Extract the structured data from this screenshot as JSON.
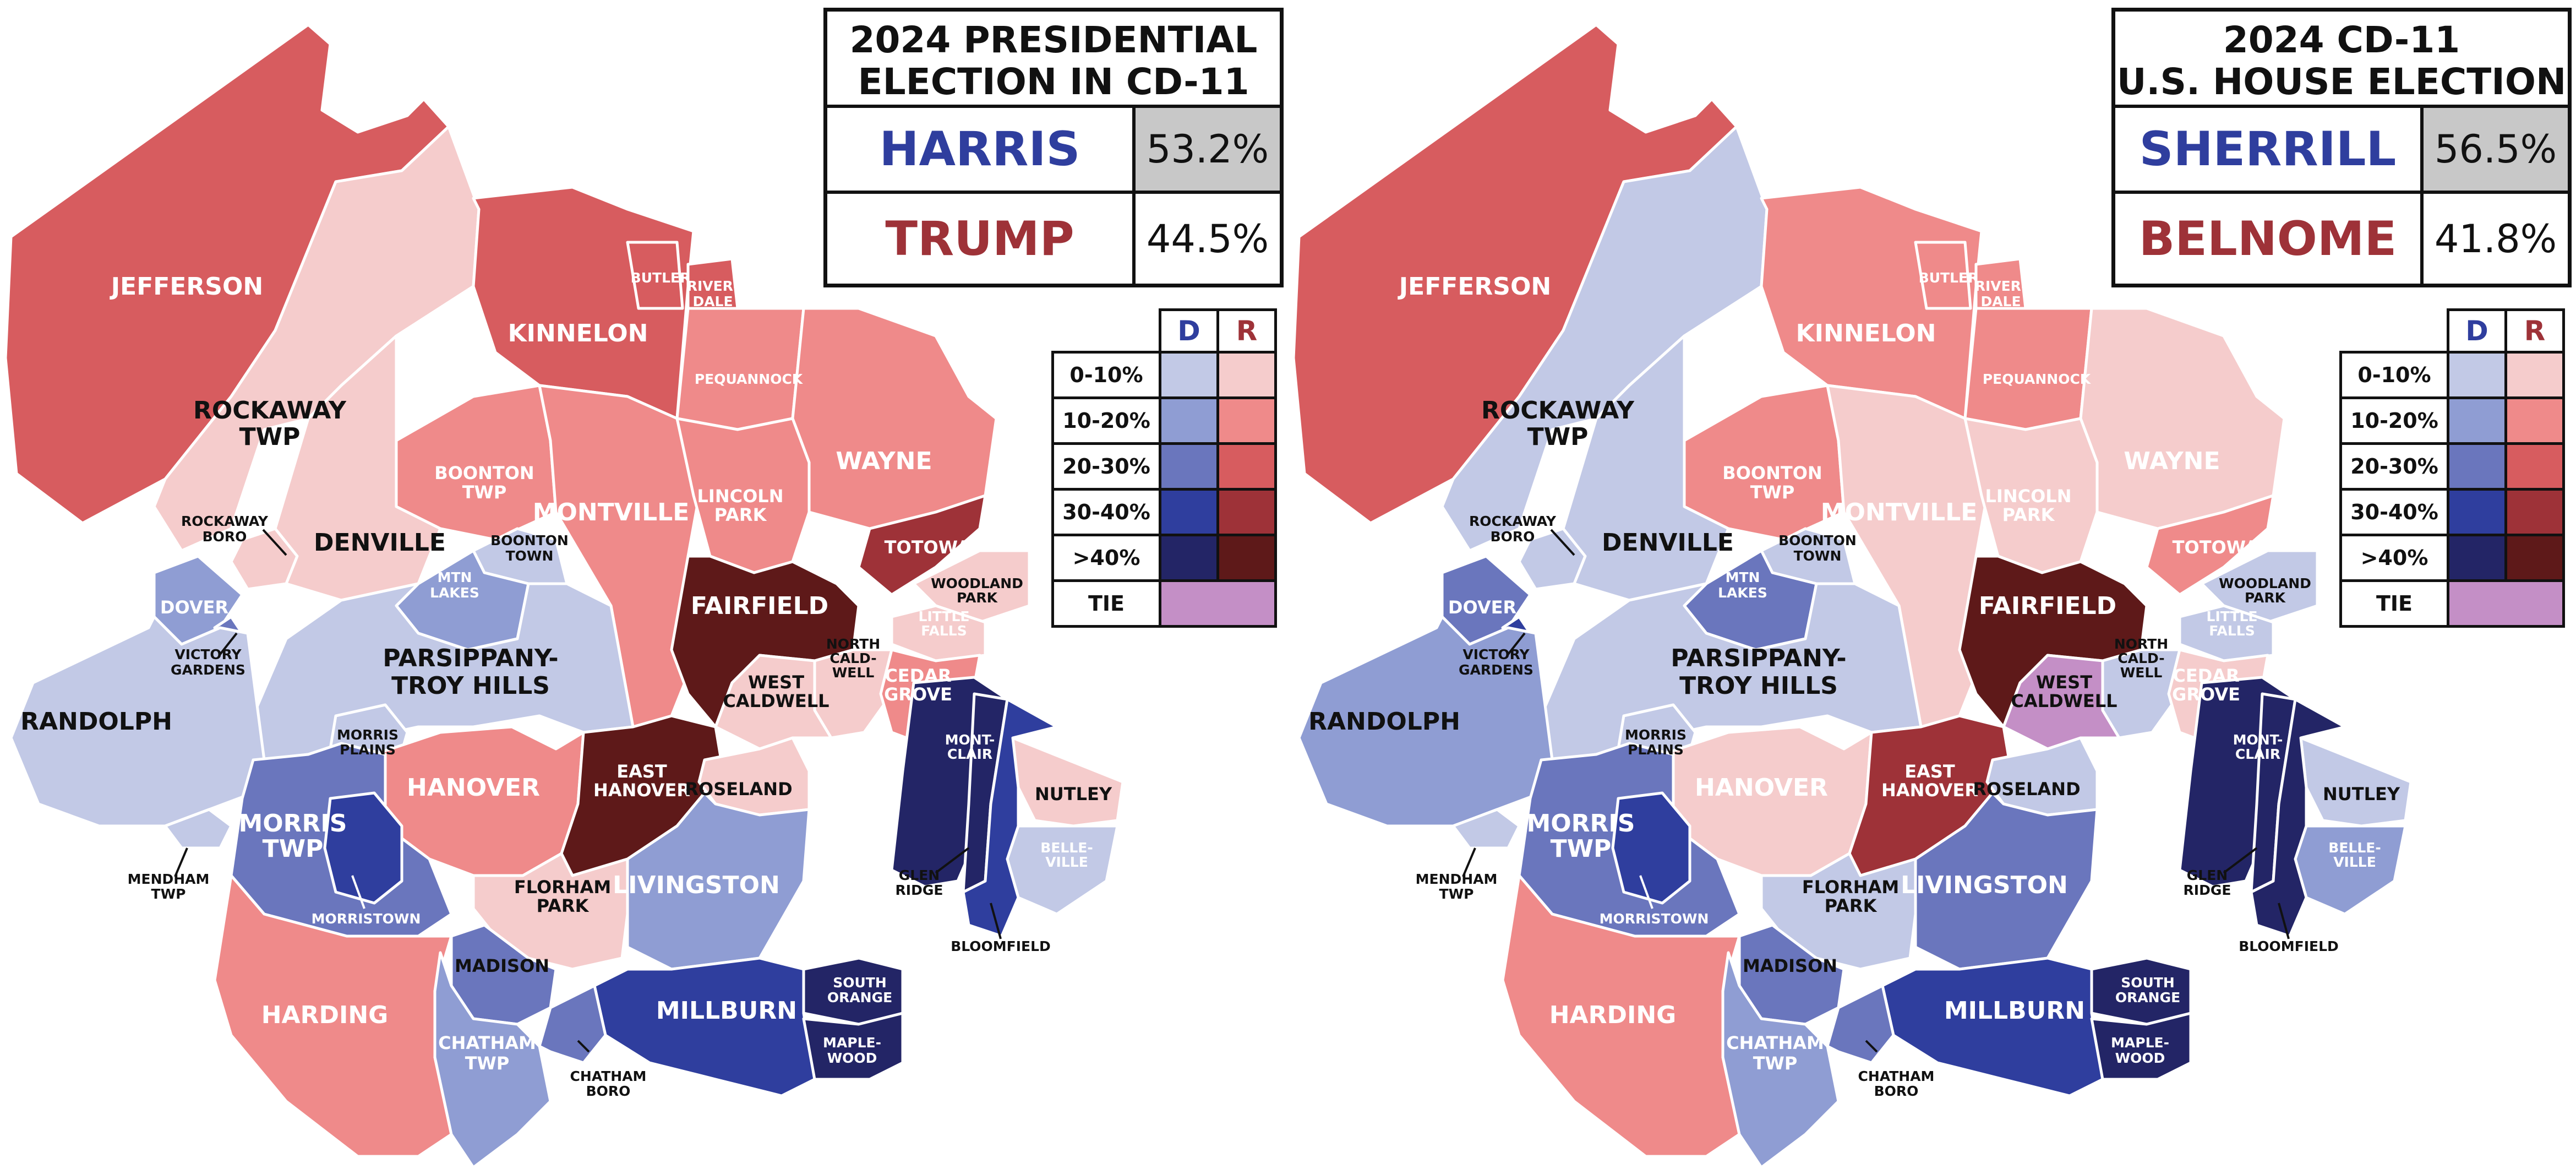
{
  "colors": {
    "d_0_10": "#c2c9e6",
    "d_10_20": "#8f9dd3",
    "d_20_30": "#6a76bd",
    "d_30_40": "#2f3e9e",
    "d_40_plus": "#232566",
    "r_0_10": "#f5cccc",
    "r_10_20": "#ef8a8a",
    "r_20_30": "#d75c5f",
    "r_30_40": "#9e3238",
    "r_40_plus": "#5e1919",
    "tie": "#c48fc6",
    "dem_text": "#2f3e9e",
    "rep_text": "#9e3238",
    "pct_highlight": "#c8c8c8"
  },
  "legend": {
    "d_header": "D",
    "r_header": "R",
    "rows": [
      "0-10%",
      "10-20%",
      "20-30%",
      "30-40%",
      ">40%"
    ],
    "tie_label": "TIE"
  },
  "maps": [
    {
      "title_line1": "2024 PRESIDENTIAL",
      "title_line2": "ELECTION IN CD-11",
      "dem_name": "HARRIS",
      "dem_pct": "53.2%",
      "rep_name": "TRUMP",
      "rep_pct": "44.5%",
      "shading": {
        "JEFFERSON": "r_20_30",
        "ROCKAWAY TWP": "r_0_10",
        "KINNELON": "r_20_30",
        "BUTLER": "r_20_30",
        "RIVERDALE": "r_20_30",
        "PEQUANNOCK": "r_10_20",
        "WAYNE": "r_10_20",
        "BOONTON TWP": "r_10_20",
        "MONTVILLE": "r_10_20",
        "LINCOLN PARK": "r_10_20",
        "TOTOWA": "r_30_40",
        "ROCKAWAY BORO": "r_0_10",
        "DENVILLE": "r_0_10",
        "BOONTON TOWN": "d_0_10",
        "MTN LAKES": "d_10_20",
        "WOODLAND PARK": "r_0_10",
        "LITTLE FALLS": "r_0_10",
        "FAIRFIELD": "r_40_plus",
        "DOVER": "d_10_20",
        "VICTORY GARDENS": "d_20_30",
        "NORTH CALDWELL": "r_0_10",
        "CEDAR GROVE": "r_10_20",
        "PARSIPPANY-TROY HILLS": "d_0_10",
        "WEST CALDWELL": "r_0_10",
        "RANDOLPH": "d_0_10",
        "MORRIS PLAINS": "d_0_10",
        "MONTCLAIR": "d_40_plus",
        "HANOVER": "r_10_20",
        "EAST HANOVER": "r_40_plus",
        "ROSELAND": "r_0_10",
        "NUTLEY": "r_0_10",
        "MORRIS TWP": "d_20_30",
        "MORRISTOWN": "d_30_40",
        "GLEN RIDGE": "d_40_plus",
        "BELLEVILLE": "d_0_10",
        "BLOOMFIELD": "d_30_40",
        "MENDHAM TWP": "d_0_10",
        "FLORHAM PARK": "r_0_10",
        "LIVINGSTON": "d_10_20",
        "MADISON": "d_20_30",
        "SOUTH ORANGE": "d_40_plus",
        "HARDING": "r_10_20",
        "MILLBURN": "d_30_40",
        "MAPLEWOOD": "d_40_plus",
        "CHATHAM TWP": "d_10_20",
        "CHATHAM BORO": "d_20_30"
      }
    },
    {
      "title_line1": "2024 CD-11",
      "title_line2": "U.S. HOUSE ELECTION",
      "dem_name": "SHERRILL",
      "dem_pct": "56.5%",
      "rep_name": "BELNOME",
      "rep_pct": "41.8%",
      "shading": {
        "JEFFERSON": "r_20_30",
        "ROCKAWAY TWP": "d_0_10",
        "KINNELON": "r_10_20",
        "BUTLER": "r_10_20",
        "RIVERDALE": "r_10_20",
        "PEQUANNOCK": "r_10_20",
        "WAYNE": "r_0_10",
        "BOONTON TWP": "r_10_20",
        "MONTVILLE": "r_0_10",
        "LINCOLN PARK": "r_0_10",
        "TOTOWA": "r_10_20",
        "ROCKAWAY BORO": "d_0_10",
        "DENVILLE": "d_0_10",
        "BOONTON TOWN": "d_0_10",
        "MTN LAKES": "d_20_30",
        "WOODLAND PARK": "d_0_10",
        "LITTLE FALLS": "d_0_10",
        "FAIRFIELD": "r_40_plus",
        "DOVER": "d_20_30",
        "VICTORY GARDENS": "d_30_40",
        "NORTH CALDWELL": "d_0_10",
        "CEDAR GROVE": "r_0_10",
        "PARSIPPANY-TROY HILLS": "d_0_10",
        "WEST CALDWELL": "tie",
        "RANDOLPH": "d_10_20",
        "MORRIS PLAINS": "d_0_10",
        "MONTCLAIR": "d_40_plus",
        "HANOVER": "r_0_10",
        "EAST HANOVER": "r_30_40",
        "ROSELAND": "d_0_10",
        "NUTLEY": "d_0_10",
        "MORRIS TWP": "d_20_30",
        "MORRISTOWN": "d_30_40",
        "GLEN RIDGE": "d_40_plus",
        "BELLEVILLE": "d_10_20",
        "BLOOMFIELD": "d_40_plus",
        "MENDHAM TWP": "d_0_10",
        "FLORHAM PARK": "d_0_10",
        "LIVINGSTON": "d_20_30",
        "MADISON": "d_20_30",
        "SOUTH ORANGE": "d_40_plus",
        "HARDING": "r_10_20",
        "MILLBURN": "d_30_40",
        "MAPLEWOOD": "d_40_plus",
        "CHATHAM TWP": "d_10_20",
        "CHATHAM BORO": "d_20_30"
      }
    }
  ],
  "map_labels": {
    "JEFFERSON": "JEFFERSON",
    "ROCKAWAY_TWP_1": "ROCKAWAY",
    "ROCKAWAY_TWP_2": "TWP",
    "KINNELON": "KINNELON",
    "BUTLER": "BUTLER",
    "RIVERDALE_1": "RIVER-",
    "RIVERDALE_2": "DALE",
    "PEQUANNOCK": "PEQUANNOCK",
    "WAYNE": "WAYNE",
    "BOONTON_TWP_1": "BOONTON",
    "BOONTON_TWP_2": "TWP",
    "MONTVILLE": "MONTVILLE",
    "LINCOLN_PARK_1": "LINCOLN",
    "LINCOLN_PARK_2": "PARK",
    "TOTOWA": "TOTOWA",
    "ROCKAWAY_BORO_1": "ROCKAWAY",
    "ROCKAWAY_BORO_2": "BORO",
    "DENVILLE": "DENVILLE",
    "BOONTON_TOWN_1": "BOONTON",
    "BOONTON_TOWN_2": "TOWN",
    "MTN_LAKES_1": "MTN",
    "MTN_LAKES_2": "LAKES",
    "WOODLAND_PARK_1": "WOODLAND",
    "WOODLAND_PARK_2": "PARK",
    "LITTLE_FALLS_1": "LITTLE",
    "LITTLE_FALLS_2": "FALLS",
    "FAIRFIELD": "FAIRFIELD",
    "DOVER": "DOVER",
    "VICTORY_GARDENS_1": "VICTORY",
    "VICTORY_GARDENS_2": "GARDENS",
    "NORTH_CALDWELL_1": "NORTH",
    "NORTH_CALDWELL_2": "CALD-",
    "NORTH_CALDWELL_3": "WELL",
    "CEDAR_GROVE_1": "CEDAR",
    "CEDAR_GROVE_2": "GROVE",
    "PARSIPPANY_1": "PARSIPPANY-",
    "PARSIPPANY_2": "TROY HILLS",
    "WEST_CALDWELL_1": "WEST",
    "WEST_CALDWELL_2": "CALDWELL",
    "RANDOLPH": "RANDOLPH",
    "MORRIS_PLAINS_1": "MORRIS",
    "MORRIS_PLAINS_2": "PLAINS",
    "MONTCLAIR_1": "MONT-",
    "MONTCLAIR_2": "CLAIR",
    "HANOVER": "HANOVER",
    "EAST_HANOVER_1": "EAST",
    "EAST_HANOVER_2": "HANOVER",
    "ROSELAND": "ROSELAND",
    "NUTLEY": "NUTLEY",
    "MORRIS_TWP_1": "MORRIS",
    "MORRIS_TWP_2": "TWP",
    "MORRISTOWN": "MORRISTOWN",
    "GLEN_RIDGE_1": "GLEN",
    "GLEN_RIDGE_2": "RIDGE",
    "BELLEVILLE_1": "BELLE-",
    "BELLEVILLE_2": "VILLE",
    "BLOOMFIELD": "BLOOMFIELD",
    "MENDHAM_TWP_1": "MENDHAM",
    "MENDHAM_TWP_2": "TWP",
    "FLORHAM_PARK_1": "FLORHAM",
    "FLORHAM_PARK_2": "PARK",
    "LIVINGSTON": "LIVINGSTON",
    "MADISON": "MADISON",
    "SOUTH_ORANGE_1": "SOUTH",
    "SOUTH_ORANGE_2": "ORANGE",
    "HARDING": "HARDING",
    "MILLBURN": "MILLBURN",
    "MAPLEWOOD_1": "MAPLE-",
    "MAPLEWOOD_2": "WOOD",
    "CHATHAM_TWP_1": "CHATHAM",
    "CHATHAM_TWP_2": "TWP",
    "CHATHAM_BORO_1": "CHATHAM",
    "CHATHAM_BORO_2": "BORO"
  }
}
